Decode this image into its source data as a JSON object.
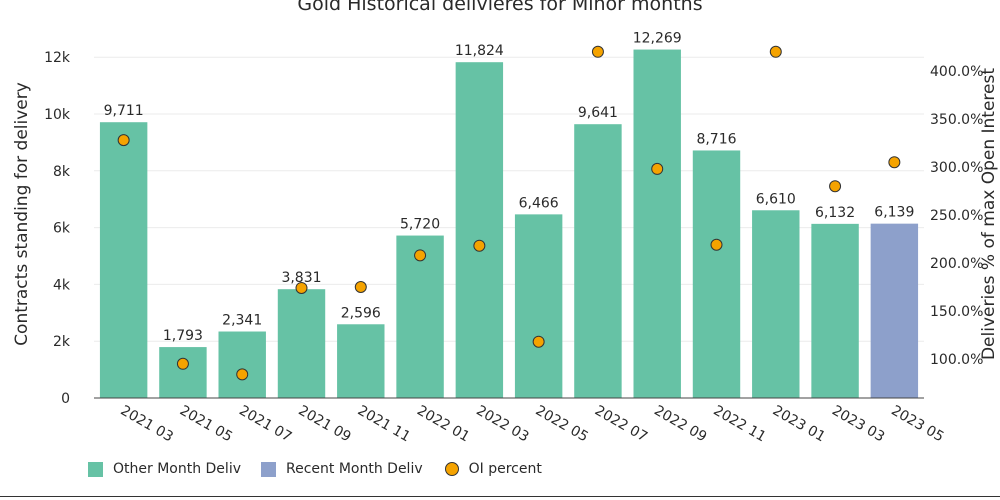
{
  "chart_data": {
    "type": "bar",
    "title": "Gold Historical delivieres for Minor months",
    "ylabel": "Contracts standing for delivery",
    "y2label": "Deliveries % of max Open Interest",
    "ylim": [
      0,
      12800
    ],
    "y2lim": [
      64,
      440
    ],
    "yticks": [
      0,
      2000,
      4000,
      6000,
      8000,
      10000,
      12000
    ],
    "ytick_labels": [
      "0",
      "2k",
      "4k",
      "6k",
      "8k",
      "10k",
      "12k"
    ],
    "y2ticks": [
      100,
      150,
      200,
      250,
      300,
      350,
      400
    ],
    "y2tick_labels": [
      "100.0%",
      "150.0%",
      "200.0%",
      "250.0%",
      "300.0%",
      "350.0%",
      "400.0%"
    ],
    "categories": [
      "2021 03",
      "2021 05",
      "2021 07",
      "2021 09",
      "2021 11",
      "2022 01",
      "2022 03",
      "2022 05",
      "2022 07",
      "2022 09",
      "2022 11",
      "2023 01",
      "2023 03",
      "2023 05"
    ],
    "series": [
      {
        "name": "Other Month Deliv",
        "type": "bar",
        "color": "#66c2a5",
        "values": [
          9711,
          1793,
          2341,
          3831,
          2596,
          5720,
          11824,
          6466,
          9641,
          12269,
          8716,
          6610,
          6132,
          null
        ],
        "labels": [
          "9,711",
          "1,793",
          "2,341",
          "3,831",
          "2,596",
          "5,720",
          "11,824",
          "6,466",
          "9,641",
          "12,269",
          "8,716",
          "6,610",
          "6,132",
          ""
        ]
      },
      {
        "name": "Recent Month Deliv",
        "type": "bar",
        "color": "#8da0cb",
        "values": [
          null,
          null,
          null,
          null,
          null,
          null,
          null,
          null,
          null,
          null,
          null,
          null,
          null,
          6139
        ],
        "labels": [
          "",
          "",
          "",
          "",
          "",
          "",
          "",
          "",
          "",
          "",
          "",
          "",
          "",
          "6,139"
        ]
      },
      {
        "name": "OI percent",
        "type": "scatter",
        "axis": "y2",
        "color": "#f5a300",
        "values": [
          328,
          95,
          84,
          174,
          175,
          208,
          218,
          118,
          420,
          298,
          219,
          420,
          280,
          305
        ]
      }
    ]
  }
}
